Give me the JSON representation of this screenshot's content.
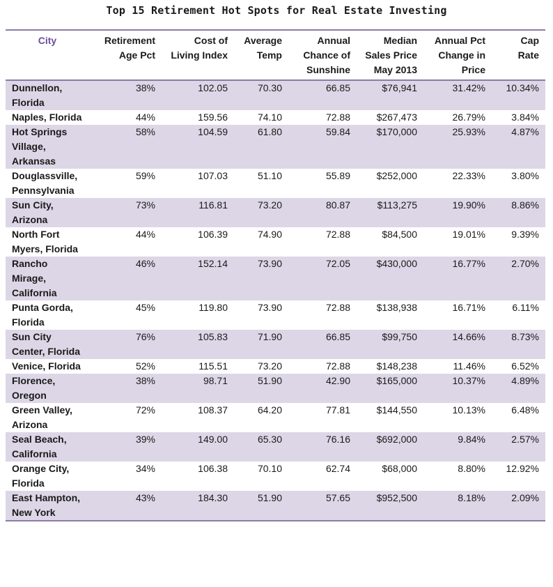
{
  "title": "Top 15 Retirement Hot Spots for Real Estate Investing",
  "columns": [
    "City",
    "Retirement Age Pct",
    "Cost of Living Index",
    "Average Temp",
    "Annual Chance of Sunshine",
    "Median Sales Price May 2013",
    "Annual Pct Change in Price",
    "Cap Rate"
  ],
  "rows": [
    [
      "Dunnellon, Florida",
      "38%",
      "102.05",
      "70.30",
      "66.85",
      "$76,941",
      "31.42%",
      "10.34%"
    ],
    [
      "Naples, Florida",
      "44%",
      "159.56",
      "74.10",
      "72.88",
      "$267,473",
      "26.79%",
      "3.84%"
    ],
    [
      "Hot Springs Village, Arkansas",
      "58%",
      "104.59",
      "61.80",
      "59.84",
      "$170,000",
      "25.93%",
      "4.87%"
    ],
    [
      "Douglassville, Pennsylvania",
      "59%",
      "107.03",
      "51.10",
      "55.89",
      "$252,000",
      "22.33%",
      "3.80%"
    ],
    [
      "Sun City, Arizona",
      "73%",
      "116.81",
      "73.20",
      "80.87",
      "$113,275",
      "19.90%",
      "8.86%"
    ],
    [
      "North Fort Myers, Florida",
      "44%",
      "106.39",
      "74.90",
      "72.88",
      "$84,500",
      "19.01%",
      "9.39%"
    ],
    [
      "Rancho Mirage, California",
      "46%",
      "152.14",
      "73.90",
      "72.05",
      "$430,000",
      "16.77%",
      "2.70%"
    ],
    [
      "Punta Gorda, Florida",
      "45%",
      "119.80",
      "73.90",
      "72.88",
      "$138,938",
      "16.71%",
      "6.11%"
    ],
    [
      "Sun City Center, Florida",
      "76%",
      "105.83",
      "71.90",
      "66.85",
      "$99,750",
      "14.66%",
      "8.73%"
    ],
    [
      "Venice, Florida",
      "52%",
      "115.51",
      "73.20",
      "72.88",
      "$148,238",
      "11.46%",
      "6.52%"
    ],
    [
      "Florence, Oregon",
      "38%",
      "98.71",
      "51.90",
      "42.90",
      "$165,000",
      "10.37%",
      "4.89%"
    ],
    [
      "Green Valley, Arizona",
      "72%",
      "108.37",
      "64.20",
      "77.81",
      "$144,550",
      "10.13%",
      "6.48%"
    ],
    [
      "Seal Beach, California",
      "39%",
      "149.00",
      "65.30",
      "76.16",
      "$692,000",
      "9.84%",
      "2.57%"
    ],
    [
      "Orange City, Florida",
      "34%",
      "106.38",
      "70.10",
      "62.74",
      "$68,000",
      "8.80%",
      "12.92%"
    ],
    [
      "East Hampton, New York",
      "43%",
      "184.30",
      "51.90",
      "57.65",
      "$952,500",
      "8.18%",
      "2.09%"
    ]
  ],
  "colors": {
    "accent": "#8b7ba8",
    "header_text": "#6a4f9c",
    "row_shade": "#dcd6e6"
  }
}
